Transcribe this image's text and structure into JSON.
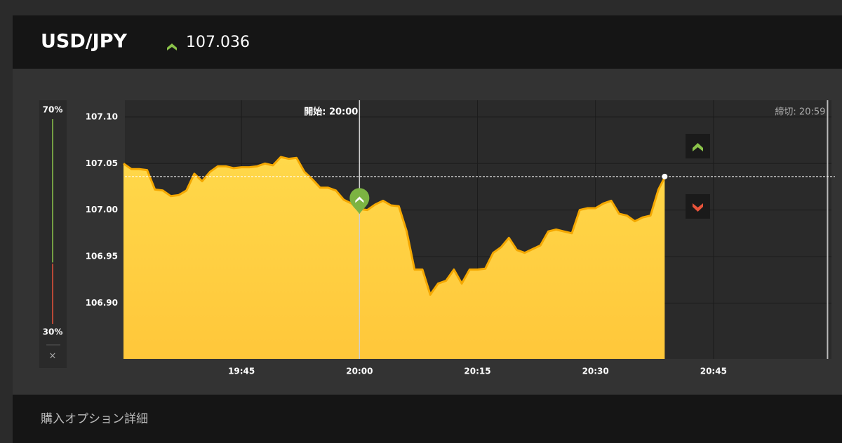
{
  "header": {
    "pair": "USD/JPY",
    "price": "107.036"
  },
  "sentiment": {
    "values": [
      70,
      30
    ],
    "value_labels": [
      "70%",
      "30%"
    ],
    "colors": [
      "#8bc34a",
      "#e8533a"
    ],
    "close": "×"
  },
  "chart_data": {
    "type": "area",
    "x": [
      1170,
      1171,
      1172,
      1173,
      1174,
      1175,
      1176,
      1177,
      1178,
      1179,
      1180,
      1181,
      1182,
      1183,
      1184,
      1185,
      1186,
      1187,
      1188,
      1189,
      1190,
      1191,
      1192,
      1193,
      1194,
      1195,
      1196,
      1197,
      1198,
      1199,
      1200,
      1201,
      1202,
      1203,
      1204,
      1205,
      1206,
      1207,
      1208,
      1209,
      1210,
      1211,
      1212,
      1213,
      1214,
      1215,
      1216,
      1217,
      1218,
      1219,
      1220,
      1221,
      1222,
      1223,
      1224,
      1225,
      1226,
      1227,
      1228,
      1229,
      1230,
      1231,
      1232,
      1233,
      1234,
      1235,
      1236,
      1237,
      1238,
      1238.8
    ],
    "values": [
      107.05,
      107.044,
      107.044,
      107.043,
      107.022,
      107.021,
      107.015,
      107.016,
      107.021,
      107.039,
      107.031,
      107.041,
      107.047,
      107.047,
      107.045,
      107.046,
      107.046,
      107.047,
      107.05,
      107.048,
      107.057,
      107.055,
      107.056,
      107.041,
      107.033,
      107.024,
      107.024,
      107.021,
      107.011,
      107.007,
      107.001,
      107.0,
      107.006,
      107.01,
      107.005,
      107.004,
      106.977,
      106.936,
      106.936,
      106.909,
      106.921,
      106.924,
      106.936,
      106.921,
      106.936,
      106.936,
      106.937,
      106.954,
      106.96,
      106.97,
      106.957,
      106.954,
      106.958,
      106.962,
      106.977,
      106.979,
      106.977,
      106.975,
      107.0,
      107.002,
      107.002,
      107.007,
      107.01,
      106.996,
      106.994,
      106.988,
      106.992,
      106.994,
      107.022,
      107.035
    ],
    "color": "#f5a800",
    "fill": "#ffd23f",
    "xlim": [
      1170,
      1260
    ],
    "ylim": [
      106.84,
      107.118
    ],
    "xticks": [
      {
        "value": 1185,
        "label": "19:45"
      },
      {
        "value": 1200,
        "label": "20:00"
      },
      {
        "value": 1215,
        "label": "20:15"
      },
      {
        "value": 1230,
        "label": "20:30"
      },
      {
        "value": 1245,
        "label": "20:45"
      }
    ],
    "yticks": [
      {
        "value": 107.1,
        "label": "107.10"
      },
      107.05,
      {
        "value": 107,
        "label": "107.00"
      },
      106.95,
      {
        "value": 106.9,
        "label": "106.90"
      }
    ],
    "grid": true,
    "current_value": 107.036,
    "start_x": 1200,
    "start_label": "開始: 20:00",
    "end_x": 1259.5,
    "end_label": "締切: 20:59",
    "entry": {
      "x": 1200,
      "value": 107.01
    }
  },
  "footer": {
    "title": "購入オプション詳細"
  }
}
